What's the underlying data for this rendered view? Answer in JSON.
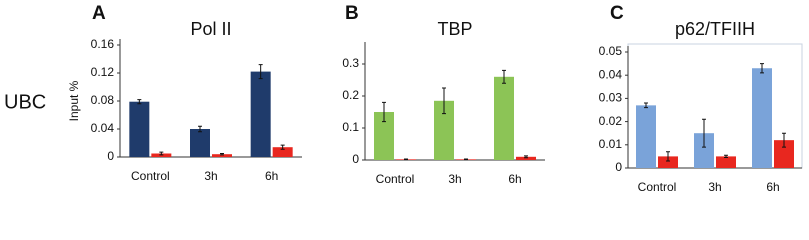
{
  "row_label": "UBC",
  "chart_data": [
    {
      "type": "bar",
      "panel": "A",
      "title": "Pol II",
      "y_label": "Input %",
      "categories": [
        "Control",
        "3h",
        "6h"
      ],
      "series": [
        {
          "color": "#1f3b6b",
          "values": [
            0.079,
            0.04,
            0.122
          ],
          "errors": [
            0.003,
            0.004,
            0.01
          ]
        },
        {
          "color": "#e8271f",
          "values": [
            0.005,
            0.004,
            0.014
          ],
          "errors": [
            0.002,
            0.001,
            0.003
          ]
        }
      ],
      "ylim": [
        0,
        0.16
      ],
      "yticks": [
        0,
        0.04,
        0.08,
        0.12,
        0.16
      ]
    },
    {
      "type": "bar",
      "panel": "B",
      "title": "TBP",
      "categories": [
        "Control",
        "3h",
        "6h"
      ],
      "series": [
        {
          "color": "#8cc456",
          "values": [
            0.15,
            0.185,
            0.26
          ],
          "errors": [
            0.03,
            0.04,
            0.02
          ]
        },
        {
          "color": "#e8271f",
          "values": [
            0.002,
            0.002,
            0.01
          ],
          "errors": [
            0.001,
            0.001,
            0.003
          ]
        }
      ],
      "ylim": [
        0,
        0.35
      ],
      "yticks": [
        0,
        0.1,
        0.2,
        0.3
      ]
    },
    {
      "type": "bar",
      "panel": "C",
      "title": "p62/TFIIH",
      "categories": [
        "Control",
        "3h",
        "6h"
      ],
      "series": [
        {
          "color": "#7aa3d9",
          "values": [
            0.027,
            0.015,
            0.043
          ],
          "errors": [
            0.001,
            0.006,
            0.002
          ]
        },
        {
          "color": "#e8271f",
          "values": [
            0.005,
            0.005,
            0.012
          ],
          "errors": [
            0.002,
            0.0005,
            0.003
          ]
        }
      ],
      "ylim": [
        0,
        0.05
      ],
      "yticks": [
        0,
        0.01,
        0.02,
        0.03,
        0.04,
        0.05
      ]
    }
  ]
}
